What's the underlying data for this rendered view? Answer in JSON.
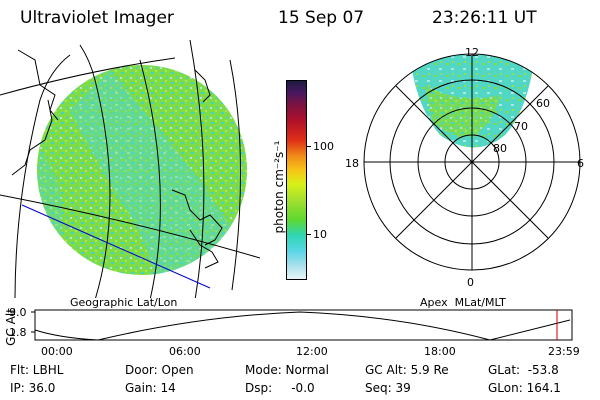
{
  "header": {
    "title": "Ultraviolet Imager",
    "date": "15 Sep 07",
    "time": "23:26:11 UT"
  },
  "colorbar": {
    "unit_label": "photon cm⁻²s⁻¹",
    "ticks": [
      "100",
      "10"
    ]
  },
  "geo_panel": {
    "label": "Geographic Lat/Lon"
  },
  "polar_panel": {
    "label": "Apex  MLat/MLT",
    "mlt_labels": [
      "12",
      "18",
      "6",
      "0"
    ],
    "lat_labels": [
      "60",
      "70",
      "80"
    ]
  },
  "altitude_plot": {
    "ylabel": "GC Alt",
    "yticks": [
      "9.0",
      "1.8"
    ],
    "xticks": [
      "00:00",
      "06:00",
      "12:00",
      "18:00",
      "23:59"
    ]
  },
  "info": {
    "flt": "Flt: LBHL",
    "ip": "IP: 36.0",
    "door": "Door: Open",
    "gain": "Gain: 14",
    "mode": "Mode: Normal",
    "dsp": "Dsp:     -0.0",
    "gcalt": "GC Alt: 5.9 Re",
    "seq": "Seq: 39",
    "glat": "GLat:  -53.8",
    "glon": "GLon: 164.1"
  },
  "colors": {
    "image_base": "#7fdc45",
    "image_cyan": "#3fd6c8",
    "geo_line": "#000000",
    "blue_track": "#0000cc",
    "current_time_marker": "#cc0000"
  }
}
